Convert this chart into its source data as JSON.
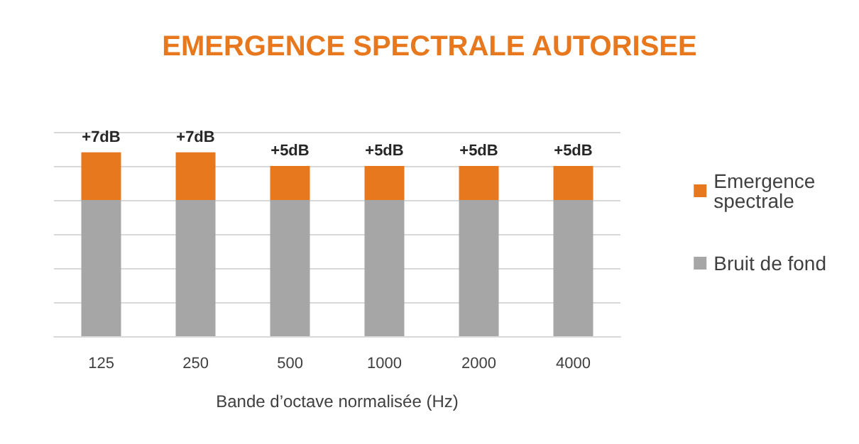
{
  "chart_data": {
    "type": "bar",
    "title": "EMERGENCE SPECTRALE AUTORISEE",
    "xlabel": "Bande d’octave normalisée (Hz)",
    "categories": [
      "125",
      "250",
      "500",
      "1000",
      "2000",
      "4000"
    ],
    "stacked": true,
    "tick_labels": "x",
    "grid": "y",
    "legend": "right",
    "series": [
      {
        "name": "Bruit de fond",
        "color": "#a6a6a6",
        "values": [
          20,
          20,
          20,
          20,
          20,
          20
        ]
      },
      {
        "name": "Emergence spectrale",
        "color": "#e8781e",
        "values": [
          7,
          7,
          5,
          5,
          5,
          5
        ],
        "value_labels": [
          "+7dB",
          "+7dB",
          "+5dB",
          "+5dB",
          "+5dB",
          "+5dB"
        ]
      }
    ]
  }
}
